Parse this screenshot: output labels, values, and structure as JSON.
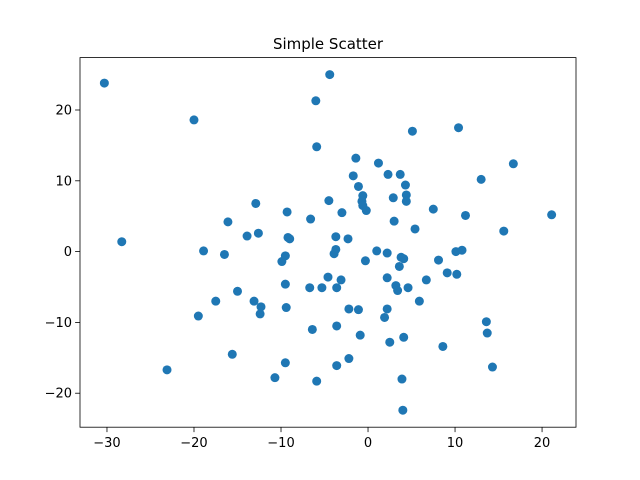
{
  "chart_data": {
    "type": "scatter",
    "title": "Simple Scatter",
    "xlabel": "",
    "ylabel": "",
    "xlim": [
      -33.1,
      23.9
    ],
    "ylim": [
      -24.8,
      27.4
    ],
    "xticks": [
      -30,
      -20,
      -10,
      0,
      10,
      20
    ],
    "yticks": [
      -20,
      -10,
      0,
      10,
      20
    ],
    "xtick_labels": [
      "−30",
      "−20",
      "−10",
      "0",
      "10",
      "20"
    ],
    "ytick_labels": [
      "−20",
      "−10",
      "0",
      "10",
      "20"
    ],
    "grid": false,
    "legend": "none",
    "marker_color": "#1f77b4",
    "points": [
      [
        -30.3,
        23.8
      ],
      [
        -28.3,
        1.4
      ],
      [
        -23.1,
        -16.7
      ],
      [
        -20.0,
        18.6
      ],
      [
        -19.5,
        -9.1
      ],
      [
        -18.9,
        0.1
      ],
      [
        -17.5,
        -7.0
      ],
      [
        -16.5,
        -0.4
      ],
      [
        -16.1,
        4.2
      ],
      [
        -15.6,
        -14.5
      ],
      [
        -15.0,
        -5.6
      ],
      [
        -13.9,
        2.2
      ],
      [
        -13.1,
        -7.0
      ],
      [
        -12.9,
        6.8
      ],
      [
        -12.6,
        2.6
      ],
      [
        -12.4,
        -8.8
      ],
      [
        -12.3,
        -7.8
      ],
      [
        -10.7,
        -17.8
      ],
      [
        -9.9,
        -1.4
      ],
      [
        -9.5,
        -0.6
      ],
      [
        -9.5,
        -4.6
      ],
      [
        -9.4,
        -7.9
      ],
      [
        -9.5,
        -15.7
      ],
      [
        -9.3,
        5.6
      ],
      [
        -9.2,
        2.0
      ],
      [
        -9.0,
        1.8
      ],
      [
        -6.7,
        -5.1
      ],
      [
        -6.6,
        4.6
      ],
      [
        -6.4,
        -11.0
      ],
      [
        -6.0,
        21.3
      ],
      [
        -5.9,
        14.8
      ],
      [
        -5.9,
        -18.3
      ],
      [
        -5.3,
        -5.1
      ],
      [
        -4.6,
        -3.6
      ],
      [
        -4.5,
        7.2
      ],
      [
        -4.4,
        25.0
      ],
      [
        -3.9,
        -0.3
      ],
      [
        -3.7,
        2.1
      ],
      [
        -3.7,
        0.3
      ],
      [
        -3.6,
        -5.1
      ],
      [
        -3.6,
        -10.5
      ],
      [
        -3.6,
        -16.1
      ],
      [
        -3.1,
        -4.0
      ],
      [
        -3.0,
        5.5
      ],
      [
        -2.3,
        1.8
      ],
      [
        -2.2,
        -8.1
      ],
      [
        -2.2,
        -15.1
      ],
      [
        -1.7,
        10.7
      ],
      [
        -1.4,
        13.2
      ],
      [
        -1.1,
        9.2
      ],
      [
        -1.1,
        -8.2
      ],
      [
        -0.9,
        -11.8
      ],
      [
        -0.7,
        7.1
      ],
      [
        -0.6,
        6.5
      ],
      [
        -0.6,
        7.9
      ],
      [
        -0.3,
        -1.3
      ],
      [
        -0.2,
        5.8
      ],
      [
        1.0,
        0.1
      ],
      [
        1.2,
        12.5
      ],
      [
        1.9,
        -9.3
      ],
      [
        2.2,
        -8.1
      ],
      [
        2.2,
        -0.2
      ],
      [
        2.2,
        -3.7
      ],
      [
        2.3,
        10.9
      ],
      [
        2.5,
        -12.8
      ],
      [
        2.9,
        7.6
      ],
      [
        3.0,
        4.3
      ],
      [
        3.2,
        -4.8
      ],
      [
        3.4,
        -5.5
      ],
      [
        3.6,
        -2.1
      ],
      [
        3.7,
        10.9
      ],
      [
        3.8,
        -0.8
      ],
      [
        3.9,
        -18.0
      ],
      [
        4.0,
        -22.4
      ],
      [
        4.1,
        -1.0
      ],
      [
        4.1,
        -12.1
      ],
      [
        4.3,
        9.4
      ],
      [
        4.4,
        8.0
      ],
      [
        4.4,
        7.1
      ],
      [
        4.6,
        -5.1
      ],
      [
        5.1,
        17.0
      ],
      [
        5.4,
        3.2
      ],
      [
        5.9,
        -7.0
      ],
      [
        6.7,
        -4.0
      ],
      [
        7.5,
        6.0
      ],
      [
        8.1,
        -1.2
      ],
      [
        8.6,
        -13.4
      ],
      [
        9.1,
        -3.0
      ],
      [
        10.2,
        -3.2
      ],
      [
        10.1,
        0.0
      ],
      [
        10.4,
        17.5
      ],
      [
        10.8,
        0.2
      ],
      [
        11.2,
        5.1
      ],
      [
        13.0,
        10.2
      ],
      [
        13.6,
        -9.9
      ],
      [
        13.7,
        -11.5
      ],
      [
        14.3,
        -16.3
      ],
      [
        15.6,
        2.9
      ],
      [
        16.7,
        12.4
      ],
      [
        21.1,
        5.2
      ]
    ]
  }
}
